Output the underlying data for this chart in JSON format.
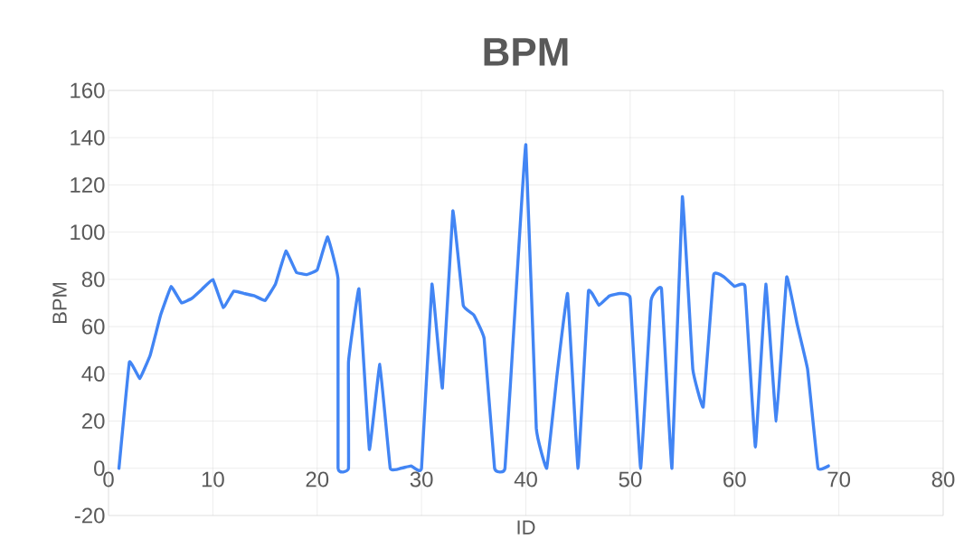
{
  "chart_data": {
    "type": "line",
    "title": "BPM",
    "xlabel": "ID",
    "ylabel": "BPM",
    "x": [
      1,
      2,
      3,
      4,
      5,
      6,
      7,
      8,
      9,
      10,
      11,
      12,
      13,
      14,
      15,
      16,
      17,
      18,
      19,
      20,
      21,
      22,
      22,
      23,
      23,
      24,
      25,
      26,
      27,
      28,
      29,
      30,
      31,
      32,
      33,
      34,
      35,
      36,
      37,
      38,
      39,
      40,
      41,
      42,
      43,
      44,
      45,
      46,
      47,
      48,
      49,
      50,
      51,
      52,
      53,
      54,
      55,
      56,
      57,
      58,
      59,
      60,
      61,
      62,
      63,
      64,
      65,
      66,
      67,
      68,
      69
    ],
    "series": [
      {
        "color": "#4285f4",
        "values": [
          0,
          45,
          38,
          48,
          65,
          77,
          70,
          72,
          76,
          80,
          68,
          75,
          74,
          73,
          71,
          78,
          92,
          83,
          82,
          84,
          98,
          80,
          0,
          0,
          45,
          76,
          8,
          44,
          0,
          0,
          1,
          0,
          78,
          34,
          109,
          69,
          65,
          55,
          0,
          0,
          70,
          137,
          17,
          0,
          40,
          74,
          0,
          75,
          69,
          73,
          74,
          72,
          0,
          71,
          76,
          0,
          115,
          42,
          26,
          82,
          81,
          77,
          77,
          9,
          78,
          20,
          81,
          61,
          42,
          0,
          1
        ]
      }
    ],
    "xlim": [
      0,
      80
    ],
    "xticks": [
      0,
      10,
      20,
      30,
      40,
      50,
      60,
      70,
      80
    ],
    "ylim": [
      -20,
      160
    ],
    "yticks": [
      -20,
      0,
      20,
      40,
      60,
      80,
      100,
      120,
      140,
      160
    ],
    "grid": true,
    "marker": "none",
    "line_style": "solid"
  }
}
